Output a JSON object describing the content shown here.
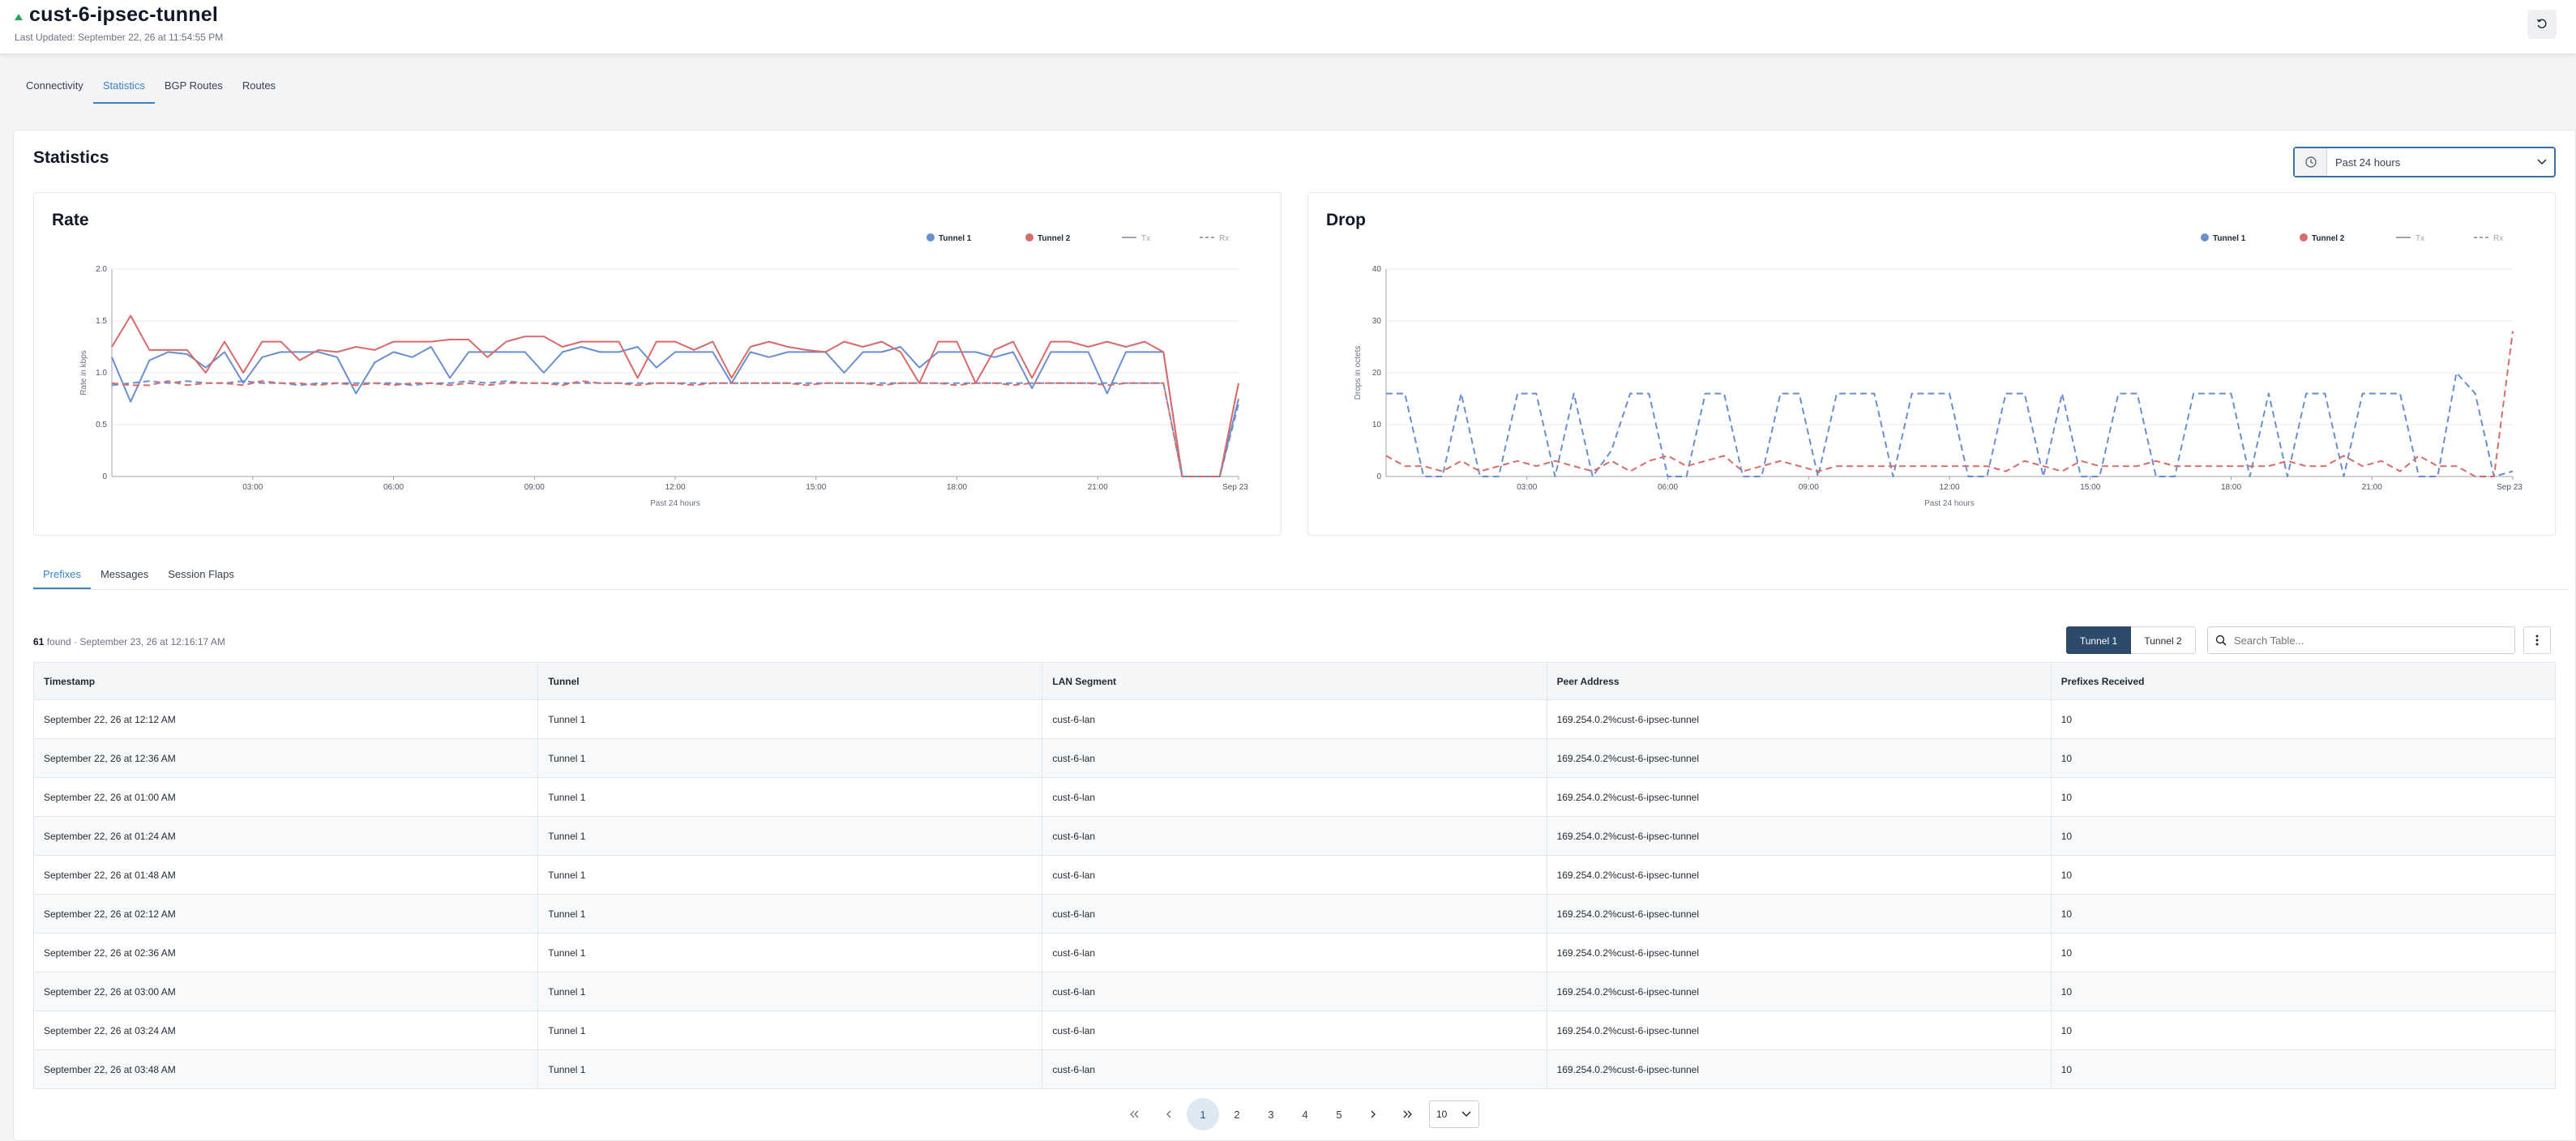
{
  "header": {
    "title": "cust-6-ipsec-tunnel",
    "last_updated": "Last Updated: September 22, 26 at 11:54:55 PM",
    "status_color": "#22a559"
  },
  "top_tabs": [
    "Connectivity",
    "Statistics",
    "BGP Routes",
    "Routes"
  ],
  "active_top_tab": "Statistics",
  "statistics": {
    "title": "Statistics",
    "time_range": "Past 24 hours"
  },
  "chart_data": [
    {
      "type": "line",
      "title": "Rate",
      "xlabel": "Past 24 hours",
      "ylabel": "Rate in kbps",
      "ylim": [
        0,
        2.0
      ],
      "yticks": [
        "0",
        "0.5",
        "1.0",
        "1.5",
        "2.0"
      ],
      "xticks": [
        "03:00",
        "06:00",
        "09:00",
        "12:00",
        "15:00",
        "18:00",
        "21:00",
        "Sep 23"
      ],
      "legend": [
        "Tunnel 1",
        "Tunnel 2",
        "Tx",
        "Rx"
      ],
      "legend_position": "top-right",
      "grid": true,
      "x": [
        0,
        0.4,
        0.8,
        1.2,
        1.6,
        2,
        2.4,
        2.8,
        3.2,
        3.6,
        4,
        4.4,
        4.8,
        5.2,
        5.6,
        6,
        6.4,
        6.8,
        7.2,
        7.6,
        8,
        8.4,
        8.8,
        9.2,
        9.6,
        10,
        10.4,
        10.8,
        11.2,
        11.6,
        12,
        12.4,
        12.8,
        13.2,
        13.6,
        14,
        14.4,
        14.8,
        15.2,
        15.6,
        16,
        16.4,
        16.8,
        17.2,
        17.6,
        18,
        18.4,
        18.8,
        19.2,
        19.6,
        20,
        20.4,
        20.8,
        21.2,
        21.6,
        22,
        22.4,
        22.8,
        23.2,
        23.6,
        24
      ],
      "series": [
        {
          "name": "Tunnel 1",
          "metric": "Tx",
          "color": "#6a8fd0",
          "values": [
            1.15,
            0.72,
            1.12,
            1.2,
            1.18,
            1.05,
            1.2,
            0.9,
            1.15,
            1.2,
            1.2,
            1.2,
            1.15,
            0.8,
            1.1,
            1.2,
            1.15,
            1.25,
            0.95,
            1.2,
            1.2,
            1.2,
            1.2,
            1.0,
            1.2,
            1.25,
            1.2,
            1.2,
            1.25,
            1.05,
            1.2,
            1.2,
            1.2,
            0.9,
            1.2,
            1.15,
            1.2,
            1.2,
            1.2,
            1.0,
            1.2,
            1.2,
            1.25,
            1.05,
            1.2,
            1.2,
            1.2,
            1.15,
            1.2,
            0.85,
            1.2,
            1.2,
            1.2,
            0.8,
            1.2,
            1.2,
            1.2,
            0.0,
            0.0,
            0.0,
            0.75
          ]
        },
        {
          "name": "Tunnel 2",
          "metric": "Tx",
          "color": "#d96a6a",
          "values": [
            1.25,
            1.55,
            1.22,
            1.22,
            1.22,
            1.0,
            1.3,
            1.0,
            1.3,
            1.3,
            1.12,
            1.22,
            1.2,
            1.25,
            1.22,
            1.3,
            1.3,
            1.3,
            1.32,
            1.32,
            1.15,
            1.3,
            1.35,
            1.35,
            1.25,
            1.3,
            1.3,
            1.3,
            0.95,
            1.3,
            1.3,
            1.22,
            1.3,
            0.95,
            1.25,
            1.3,
            1.25,
            1.22,
            1.2,
            1.3,
            1.25,
            1.3,
            1.2,
            0.9,
            1.3,
            1.3,
            0.9,
            1.22,
            1.3,
            0.95,
            1.3,
            1.3,
            1.25,
            1.3,
            1.25,
            1.3,
            1.2,
            0.0,
            0.0,
            0.0,
            0.9
          ]
        },
        {
          "name": "Tunnel 1",
          "metric": "Rx",
          "color": "#6a8fd0",
          "values": [
            0.88,
            0.9,
            0.92,
            0.9,
            0.92,
            0.9,
            0.9,
            0.92,
            0.9,
            0.9,
            0.88,
            0.9,
            0.9,
            0.9,
            0.9,
            0.9,
            0.88,
            0.9,
            0.9,
            0.92,
            0.9,
            0.92,
            0.9,
            0.9,
            0.9,
            0.9,
            0.9,
            0.9,
            0.9,
            0.9,
            0.9,
            0.9,
            0.9,
            0.9,
            0.9,
            0.9,
            0.9,
            0.9,
            0.9,
            0.9,
            0.9,
            0.9,
            0.9,
            0.9,
            0.9,
            0.9,
            0.9,
            0.9,
            0.9,
            0.9,
            0.9,
            0.9,
            0.9,
            0.9,
            0.9,
            0.9,
            0.9,
            0.0,
            0.0,
            0.0,
            0.7
          ]
        },
        {
          "name": "Tunnel 2",
          "metric": "Rx",
          "color": "#d96a6a",
          "values": [
            0.9,
            0.88,
            0.88,
            0.92,
            0.88,
            0.9,
            0.9,
            0.88,
            0.92,
            0.9,
            0.9,
            0.88,
            0.9,
            0.88,
            0.9,
            0.88,
            0.9,
            0.9,
            0.88,
            0.9,
            0.88,
            0.9,
            0.9,
            0.9,
            0.88,
            0.92,
            0.9,
            0.9,
            0.88,
            0.9,
            0.9,
            0.88,
            0.9,
            0.9,
            0.9,
            0.9,
            0.9,
            0.88,
            0.9,
            0.9,
            0.9,
            0.88,
            0.9,
            0.9,
            0.9,
            0.88,
            0.9,
            0.9,
            0.88,
            0.9,
            0.9,
            0.9,
            0.9,
            0.88,
            0.9,
            0.9,
            0.9,
            0.0,
            0.0,
            0.0,
            0.9
          ]
        }
      ]
    },
    {
      "type": "line",
      "title": "Drop",
      "xlabel": "Past 24 hours",
      "ylabel": "Drops in octets",
      "ylim": [
        0,
        40
      ],
      "yticks": [
        "0",
        "10",
        "20",
        "30",
        "40"
      ],
      "xticks": [
        "03:00",
        "06:00",
        "09:00",
        "12:00",
        "15:00",
        "18:00",
        "21:00",
        "Sep 23"
      ],
      "legend": [
        "Tunnel 1",
        "Tunnel 2",
        "Tx",
        "Rx"
      ],
      "legend_position": "top-right",
      "grid": true,
      "x": [
        0,
        0.4,
        0.8,
        1.2,
        1.6,
        2,
        2.4,
        2.8,
        3.2,
        3.6,
        4,
        4.4,
        4.8,
        5.2,
        5.6,
        6,
        6.4,
        6.8,
        7.2,
        7.6,
        8,
        8.4,
        8.8,
        9.2,
        9.6,
        10,
        10.4,
        10.8,
        11.2,
        11.6,
        12,
        12.4,
        12.8,
        13.2,
        13.6,
        14,
        14.4,
        14.8,
        15.2,
        15.6,
        16,
        16.4,
        16.8,
        17.2,
        17.6,
        18,
        18.4,
        18.8,
        19.2,
        19.6,
        20,
        20.4,
        20.8,
        21.2,
        21.6,
        22,
        22.4,
        22.8,
        23.2,
        23.6,
        24
      ],
      "series": [
        {
          "name": "Tunnel 1",
          "metric": "Rx",
          "color": "#6a8fd0",
          "values": [
            16,
            16,
            0,
            0,
            16,
            0,
            0,
            16,
            16,
            0,
            16,
            0,
            5,
            16,
            16,
            0,
            0,
            16,
            16,
            0,
            0,
            16,
            16,
            0,
            16,
            16,
            16,
            0,
            16,
            16,
            16,
            0,
            0,
            16,
            16,
            0,
            16,
            0,
            0,
            16,
            16,
            0,
            0,
            16,
            16,
            16,
            0,
            16,
            0,
            16,
            16,
            0,
            16,
            16,
            16,
            0,
            0,
            20,
            16,
            0,
            1
          ]
        },
        {
          "name": "Tunnel 2",
          "metric": "Rx",
          "color": "#d96a6a",
          "values": [
            4,
            2,
            2,
            1,
            3,
            1,
            2,
            3,
            2,
            3,
            2,
            1,
            3,
            1,
            3,
            4,
            2,
            3,
            4,
            1,
            2,
            3,
            2,
            1,
            2,
            2,
            2,
            2,
            2,
            2,
            2,
            2,
            2,
            1,
            3,
            2,
            1,
            3,
            2,
            2,
            2,
            3,
            2,
            2,
            2,
            2,
            2,
            2,
            3,
            2,
            2,
            4,
            2,
            3,
            1,
            4,
            2,
            2,
            0,
            0,
            28
          ]
        }
      ]
    }
  ],
  "sub_tabs": [
    "Prefixes",
    "Messages",
    "Session Flaps"
  ],
  "active_sub_tab": "Prefixes",
  "results": {
    "count": "61",
    "found_label": "found",
    "date_text": "· September 23, 26 at 12:16:17 AM"
  },
  "tunnel_toggle": [
    "Tunnel 1",
    "Tunnel 2"
  ],
  "search": {
    "placeholder": "Search Table..."
  },
  "table": {
    "columns": [
      "Timestamp",
      "Tunnel",
      "LAN Segment",
      "Peer Address",
      "Prefixes Received"
    ],
    "rows": [
      [
        "September 22, 26 at 12:12 AM",
        "Tunnel 1",
        "cust-6-lan",
        "169.254.0.2%cust-6-ipsec-tunnel",
        "10"
      ],
      [
        "September 22, 26 at 12:36 AM",
        "Tunnel 1",
        "cust-6-lan",
        "169.254.0.2%cust-6-ipsec-tunnel",
        "10"
      ],
      [
        "September 22, 26 at 01:00 AM",
        "Tunnel 1",
        "cust-6-lan",
        "169.254.0.2%cust-6-ipsec-tunnel",
        "10"
      ],
      [
        "September 22, 26 at 01:24 AM",
        "Tunnel 1",
        "cust-6-lan",
        "169.254.0.2%cust-6-ipsec-tunnel",
        "10"
      ],
      [
        "September 22, 26 at 01:48 AM",
        "Tunnel 1",
        "cust-6-lan",
        "169.254.0.2%cust-6-ipsec-tunnel",
        "10"
      ],
      [
        "September 22, 26 at 02:12 AM",
        "Tunnel 1",
        "cust-6-lan",
        "169.254.0.2%cust-6-ipsec-tunnel",
        "10"
      ],
      [
        "September 22, 26 at 02:36 AM",
        "Tunnel 1",
        "cust-6-lan",
        "169.254.0.2%cust-6-ipsec-tunnel",
        "10"
      ],
      [
        "September 22, 26 at 03:00 AM",
        "Tunnel 1",
        "cust-6-lan",
        "169.254.0.2%cust-6-ipsec-tunnel",
        "10"
      ],
      [
        "September 22, 26 at 03:24 AM",
        "Tunnel 1",
        "cust-6-lan",
        "169.254.0.2%cust-6-ipsec-tunnel",
        "10"
      ],
      [
        "September 22, 26 at 03:48 AM",
        "Tunnel 1",
        "cust-6-lan",
        "169.254.0.2%cust-6-ipsec-tunnel",
        "10"
      ]
    ]
  },
  "pagination": {
    "pages": [
      "1",
      "2",
      "3",
      "4",
      "5"
    ],
    "current": "1",
    "page_size": "10"
  },
  "colors": {
    "accent": "#3b82c4",
    "tunnel1": "#6a8fd0",
    "tunnel2": "#d96a6a",
    "primary_button": "#2c4a6b"
  }
}
